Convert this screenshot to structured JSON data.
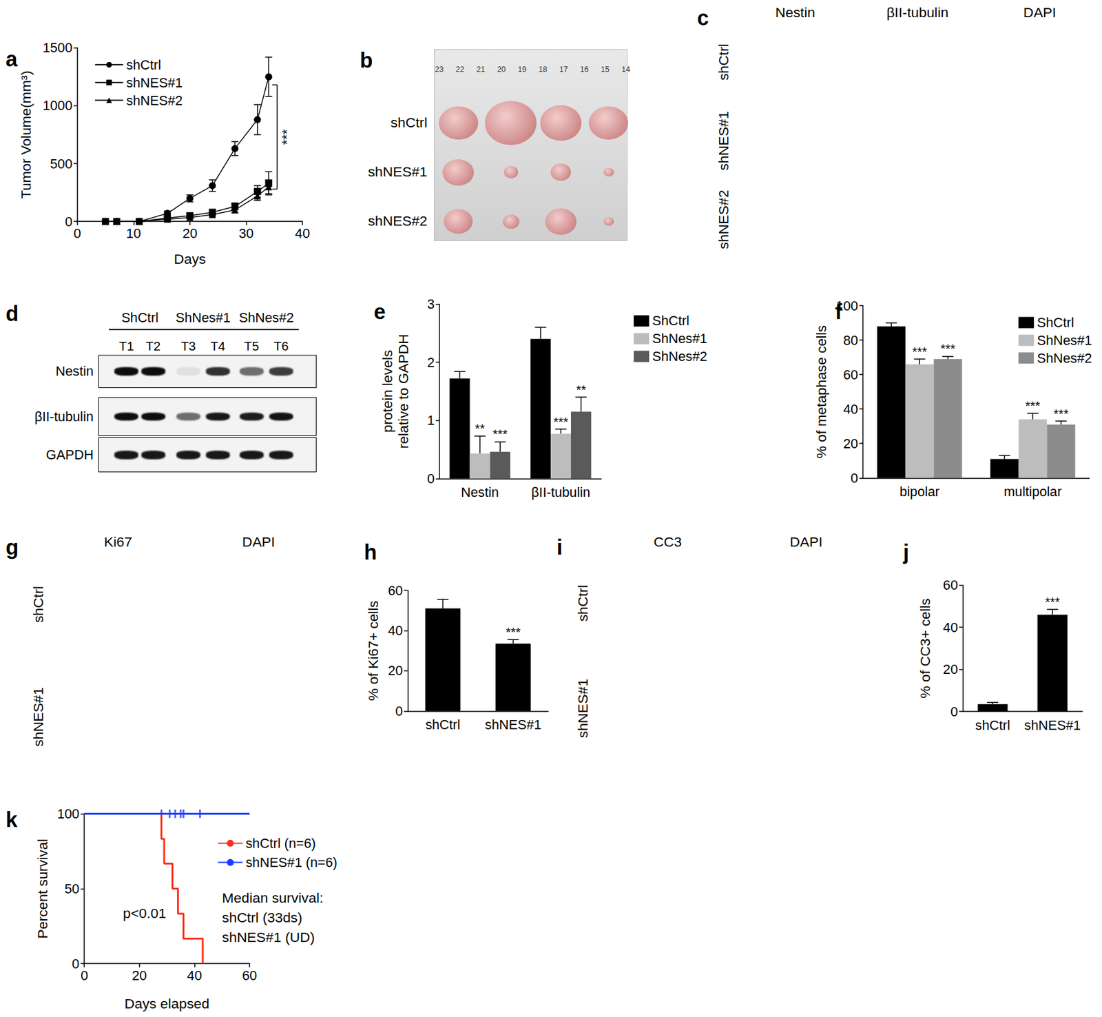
{
  "chart_data": [
    {
      "panel": "a",
      "type": "line",
      "x_label": "Days",
      "y_label": "Tumor Volume(mm³)",
      "x": [
        5,
        7,
        11,
        16,
        20,
        24,
        28,
        32,
        34
      ],
      "series": [
        {
          "name": "shCtrl",
          "color": "#000000",
          "marker": "circle",
          "values": [
            0,
            0,
            0,
            70,
            200,
            310,
            630,
            880,
            1250
          ],
          "errors": [
            0,
            0,
            0,
            20,
            30,
            50,
            60,
            130,
            170
          ]
        },
        {
          "name": "shNES#1",
          "color": "#000000",
          "marker": "square",
          "values": [
            0,
            0,
            0,
            30,
            50,
            80,
            130,
            260,
            330
          ],
          "errors": [
            0,
            0,
            0,
            10,
            15,
            20,
            30,
            50,
            100
          ]
        },
        {
          "name": "shNES#2",
          "color": "#000000",
          "marker": "triangle",
          "values": [
            0,
            0,
            0,
            20,
            35,
            60,
            100,
            220,
            300
          ],
          "errors": [
            0,
            0,
            0,
            8,
            10,
            15,
            25,
            40,
            60
          ]
        }
      ],
      "xlim": [
        0,
        40
      ],
      "xticks": [
        0,
        10,
        20,
        30,
        40
      ],
      "ylim": [
        0,
        1500
      ],
      "yticks": [
        0,
        500,
        1000,
        1500
      ],
      "grid": false,
      "legend": "upper left",
      "annotations": [
        {
          "text": "***",
          "x": 35.5,
          "y_from": 280,
          "y_to": 1180
        }
      ]
    },
    {
      "panel": "e",
      "type": "bar",
      "y_label": "protein levels relative to GAPDH",
      "categories": [
        "Nestin",
        "βII-tubulin"
      ],
      "series": [
        {
          "name": "ShCtrl",
          "color": "#000000",
          "values": [
            1.72,
            2.4
          ],
          "errors": [
            0.12,
            0.2
          ]
        },
        {
          "name": "ShNes#1",
          "color": "#bdbdbd",
          "values": [
            0.43,
            0.77
          ],
          "errors": [
            0.3,
            0.08
          ],
          "significance": [
            "**",
            "***"
          ]
        },
        {
          "name": "ShNes#2",
          "color": "#5a5a5a",
          "values": [
            0.46,
            1.15
          ],
          "errors": [
            0.17,
            0.25
          ],
          "significance": [
            "***",
            "**"
          ]
        }
      ],
      "ylim": [
        0,
        3
      ],
      "yticks": [
        0,
        1,
        2,
        3
      ],
      "grid": false,
      "legend": "upper right"
    },
    {
      "panel": "f",
      "type": "bar",
      "y_label": "% of metaphase cells",
      "categories": [
        "bipolar",
        "multipolar"
      ],
      "series": [
        {
          "name": "ShCtrl",
          "color": "#000000",
          "values": [
            88,
            11
          ],
          "errors": [
            2,
            2
          ]
        },
        {
          "name": "ShNes#1",
          "color": "#bdbdbd",
          "values": [
            66,
            34
          ],
          "errors": [
            3,
            3.5
          ],
          "significance": [
            "***",
            "***"
          ]
        },
        {
          "name": "ShNes#2",
          "color": "#8c8c8c",
          "values": [
            69,
            31
          ],
          "errors": [
            1.5,
            2
          ],
          "significance": [
            "***",
            "***"
          ]
        }
      ],
      "ylim": [
        0,
        100
      ],
      "yticks": [
        0,
        20,
        40,
        60,
        80,
        100
      ],
      "grid": false,
      "legend": "upper right"
    },
    {
      "panel": "h",
      "type": "bar",
      "y_label": "% of Ki67+ cells",
      "categories": [
        "shCtrl",
        "shNES#1"
      ],
      "values": [
        51,
        33.5
      ],
      "errors": [
        4.5,
        2
      ],
      "significance": [
        null,
        "***"
      ],
      "color": "#000000",
      "ylim": [
        0,
        60
      ],
      "yticks": [
        0,
        20,
        40,
        60
      ],
      "grid": false
    },
    {
      "panel": "j",
      "type": "bar",
      "y_label": "% of CC3+ cells",
      "categories": [
        "shCtrl",
        "shNES#1"
      ],
      "values": [
        3.5,
        46
      ],
      "errors": [
        0.8,
        2.5
      ],
      "significance": [
        null,
        "***"
      ],
      "color": "#000000",
      "ylim": [
        0,
        60
      ],
      "yticks": [
        0,
        20,
        40,
        60
      ],
      "grid": false
    },
    {
      "panel": "k",
      "type": "line",
      "line_style": "step",
      "x_label": "Days elapsed",
      "y_label": "Percent survival",
      "series": [
        {
          "name": "shCtrl (n=6)",
          "color": "#ff2d1a",
          "x": [
            0,
            28,
            29,
            32,
            34,
            36,
            43
          ],
          "values": [
            100,
            83.3,
            66.7,
            50,
            33.3,
            16.7,
            0
          ]
        },
        {
          "name": "shNES#1 (n=6)",
          "color": "#1d3cff",
          "x": [
            0,
            60
          ],
          "values": [
            100,
            100
          ],
          "censored_x": [
            28,
            31,
            33,
            35,
            36,
            42
          ]
        }
      ],
      "xlim": [
        0,
        60
      ],
      "xticks": [
        0,
        20,
        40,
        60
      ],
      "ylim": [
        0,
        100
      ],
      "yticks": [
        0,
        50,
        100
      ],
      "grid": false,
      "legend": "right",
      "annotations": [
        "p<0.01",
        "Median survival:",
        "shCtrl (33ds)",
        "shNES#1 (UD)"
      ]
    }
  ],
  "image_panels": [
    {
      "panel": "b",
      "type": "photo",
      "rows": [
        "shCtrl",
        "shNES#1",
        "shNES#2"
      ],
      "ruler_labels": [
        "23",
        "22",
        "21",
        "20",
        "19",
        "18",
        "17",
        "16",
        "15",
        "14"
      ],
      "tumor_widths_cm": [
        [
          1.9,
          2.5,
          2.0,
          1.9
        ],
        [
          1.5,
          0.7,
          1.0,
          0.5
        ],
        [
          1.4,
          0.8,
          1.5,
          0.5
        ]
      ]
    },
    {
      "panel": "c",
      "type": "micrographs",
      "rows": [
        "shCtrl",
        "shNES#1",
        "shNES#2"
      ],
      "columns": [
        {
          "name": "Nestin",
          "color": "#2aa82a"
        },
        {
          "name": "βII-tubulin",
          "color": "#b8401c"
        },
        {
          "name": "DAPI",
          "color": "#2233dd"
        }
      ]
    },
    {
      "panel": "d",
      "type": "western_blot",
      "groups": [
        {
          "name": "ShCtrl",
          "lanes": [
            "T1",
            "T2"
          ]
        },
        {
          "name": "ShNes#1",
          "lanes": [
            "T3",
            "T4"
          ]
        },
        {
          "name": "ShNes#2",
          "lanes": [
            "T5",
            "T6"
          ]
        }
      ],
      "rows": [
        {
          "name": "Nestin",
          "band_intensity": [
            0.95,
            0.95,
            0.08,
            0.8,
            0.55,
            0.75
          ]
        },
        {
          "name": "βII-tubulin",
          "band_intensity": [
            0.95,
            0.95,
            0.55,
            0.9,
            0.88,
            0.92
          ]
        },
        {
          "name": "GAPDH",
          "band_intensity": [
            0.9,
            0.9,
            0.9,
            0.9,
            0.9,
            0.9
          ]
        }
      ]
    },
    {
      "panel": "g",
      "type": "micrographs",
      "rows": [
        "shCtrl",
        "shNES#1"
      ],
      "columns": [
        {
          "name": "Ki67",
          "color": "#e0401a"
        },
        {
          "name": "DAPI",
          "color": "#2233dd"
        }
      ]
    },
    {
      "panel": "i",
      "type": "micrographs",
      "rows": [
        "shCtrl",
        "shNES#1"
      ],
      "columns": [
        {
          "name": "CC3",
          "color": "#c83012"
        },
        {
          "name": "DAPI",
          "color": "#2233dd"
        }
      ]
    }
  ]
}
